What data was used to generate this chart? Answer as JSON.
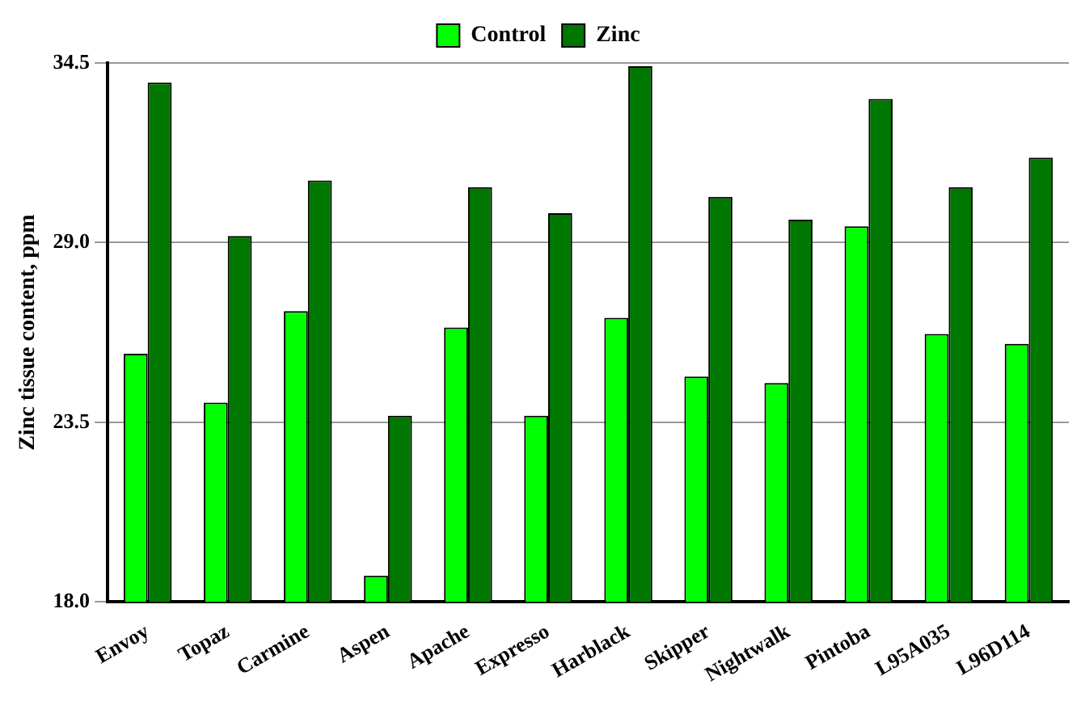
{
  "chart_data": {
    "type": "bar",
    "ylabel": "Zinc tissue content, ppm",
    "categories": [
      "Envoy",
      "Topaz",
      "Carmine",
      "Aspen",
      "Apache",
      "Expresso",
      "Harblack",
      "Skipper",
      "Nightwalk",
      "Pintoba",
      "L95A035",
      "L96D114"
    ],
    "series": [
      {
        "name": "Control",
        "color": "#00ff00",
        "values": [
          25.6,
          24.1,
          26.9,
          18.8,
          26.4,
          23.7,
          26.7,
          24.9,
          24.7,
          29.5,
          26.2,
          25.9
        ]
      },
      {
        "name": "Zinc",
        "color": "#007700",
        "values": [
          33.9,
          29.2,
          30.9,
          23.7,
          30.7,
          29.9,
          34.4,
          30.4,
          29.7,
          33.4,
          30.7,
          31.6
        ]
      }
    ],
    "ylim": [
      18,
      34.5
    ],
    "yticks": [
      {
        "value": 18,
        "label": "18.0"
      },
      23.5,
      {
        "value": 29,
        "label": "29.0"
      },
      34.5
    ],
    "grid": "y",
    "legend": "top"
  }
}
